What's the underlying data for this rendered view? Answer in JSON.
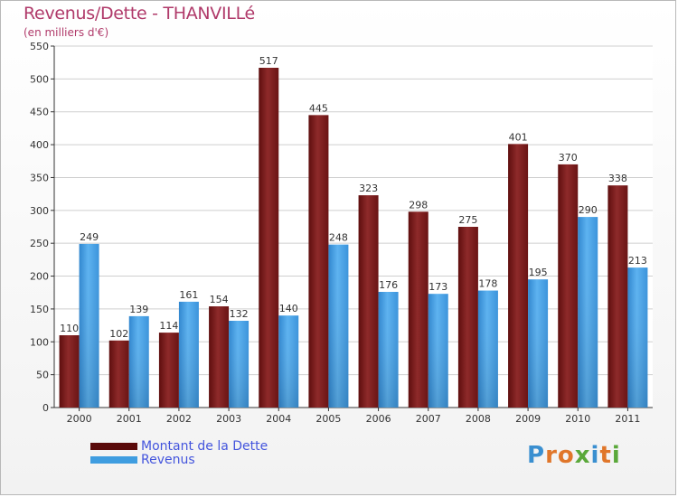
{
  "header": {
    "title": "Revenus/Dette - THANVILLé",
    "subtitle": "(en milliers d'€)"
  },
  "chart_data": {
    "type": "bar",
    "title": "Revenus/Dette - THANVILLé",
    "ylabel": "(en milliers d'€)",
    "xlabel": "",
    "categories": [
      "2000",
      "2001",
      "2002",
      "2003",
      "2004",
      "2005",
      "2006",
      "2007",
      "2008",
      "2009",
      "2010",
      "2011"
    ],
    "series": [
      {
        "name": "Montant de la Dette",
        "color": "#7a1e1e",
        "values": [
          110,
          102,
          114,
          154,
          517,
          445,
          323,
          298,
          275,
          401,
          370,
          338
        ]
      },
      {
        "name": "Revenus",
        "color": "#3f9de0",
        "values": [
          249,
          139,
          161,
          132,
          140,
          248,
          176,
          173,
          178,
          195,
          290,
          213
        ]
      }
    ],
    "ylim": [
      0,
      550
    ],
    "yticks": [
      0,
      50,
      100,
      150,
      200,
      250,
      300,
      350,
      400,
      450,
      500,
      550
    ],
    "grid": true,
    "legend": "bottom-left"
  },
  "legend": [
    {
      "label": "Montant de la Dette",
      "color": "#5a0a0a"
    },
    {
      "label": "Revenus",
      "color": "#3f9de0"
    }
  ],
  "logo": {
    "letters": [
      "P",
      "r",
      "o",
      "x",
      "i",
      "t",
      "i"
    ],
    "colors": [
      "#3a8fd0",
      "#e0762a",
      "#e0762a",
      "#5aa83a",
      "#3a8fd0",
      "#e0762a",
      "#5aa83a"
    ]
  }
}
